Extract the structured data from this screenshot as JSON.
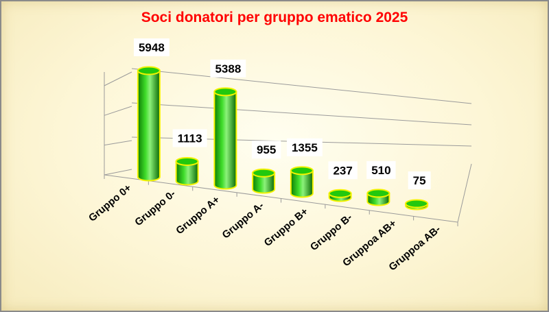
{
  "chart_data": {
    "type": "bar",
    "title": "Soci donatori per gruppo ematico 2025",
    "categories": [
      "Gruppo 0+",
      "Gruppo 0-",
      "Gruppo A+",
      "Gruppo A-",
      "Gruppo B+",
      "Gruppo B-",
      "Gruppoa AB+",
      "Gruppoa AB-"
    ],
    "values": [
      5948,
      1113,
      5388,
      955,
      1355,
      237,
      510,
      75
    ],
    "ylim": [
      0,
      6000
    ],
    "grid": true,
    "legend": "none",
    "colors": {
      "bar_fill": "#22c80e",
      "bar_dark": "#0e7d06",
      "bar_light": "#8cf27a",
      "bar_outline": "#f2f200",
      "title": "#ff0000",
      "grid": "#9a9a9a"
    }
  }
}
